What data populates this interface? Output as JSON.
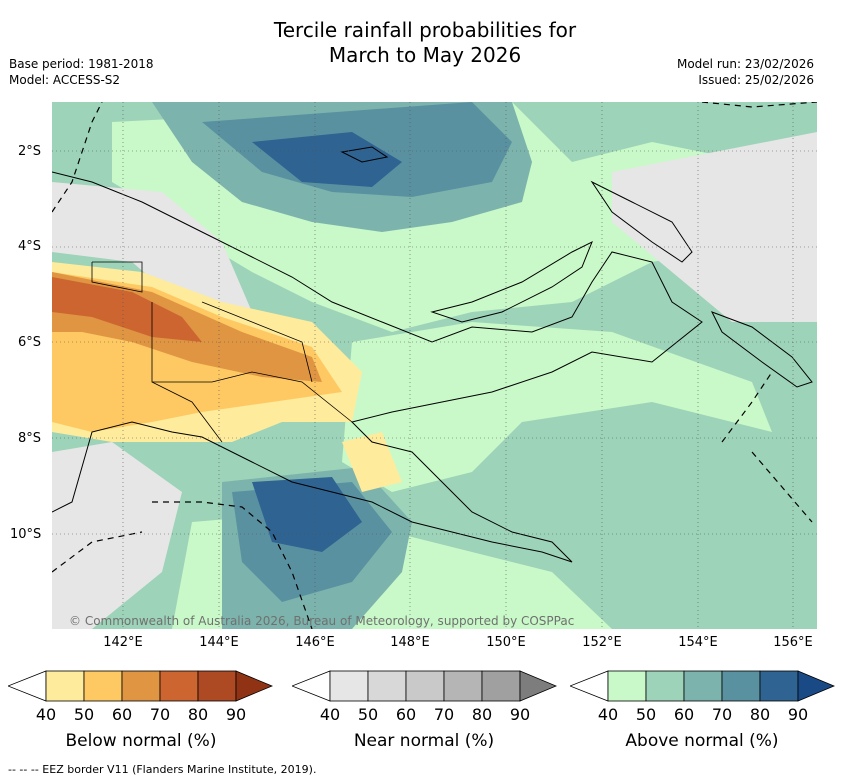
{
  "title_line1": "Tercile rainfall probabilities for",
  "title_line2": "March to May 2026",
  "base_period": "Base period: 1981-2018",
  "model": "Model: ACCESS-S2",
  "model_run": "Model run: 23/02/2026",
  "issued": "Issued: 25/02/2026",
  "lat_labels": [
    "2°S",
    "4°S",
    "6°S",
    "8°S",
    "10°S"
  ],
  "lon_labels": [
    "142°E",
    "144°E",
    "146°E",
    "148°E",
    "150°E",
    "152°E",
    "154°E",
    "156°E"
  ],
  "copyright": "© Commonwealth of Australia 2026, Bureau of Meteorology, supported by COSPPac",
  "colorbars": [
    {
      "title": "Below normal (%)",
      "ticks": [
        "40",
        "50",
        "60",
        "70",
        "80",
        "90"
      ],
      "colors": [
        "#ffffff",
        "#ffeb9c",
        "#fec962",
        "#e09543",
        "#cc6530",
        "#ad4a24",
        "#8f3314"
      ]
    },
    {
      "title": "Near normal (%)",
      "ticks": [
        "40",
        "50",
        "60",
        "70",
        "80",
        "90"
      ],
      "colors": [
        "#ffffff",
        "#e6e6e6",
        "#d8d8d8",
        "#c9c9c9",
        "#b5b5b5",
        "#a0a0a0",
        "#7d7d7d"
      ]
    },
    {
      "title": "Above normal (%)",
      "ticks": [
        "40",
        "50",
        "60",
        "70",
        "80",
        "90"
      ],
      "colors": [
        "#ffffff",
        "#c9f9c8",
        "#9dd3b8",
        "#7cb4ad",
        "#5a91a0",
        "#2f6391",
        "#1a4a85"
      ]
    }
  ],
  "footer": "--  --  -- EEZ border V11 (Flanders Marine Institute, 2019)."
}
